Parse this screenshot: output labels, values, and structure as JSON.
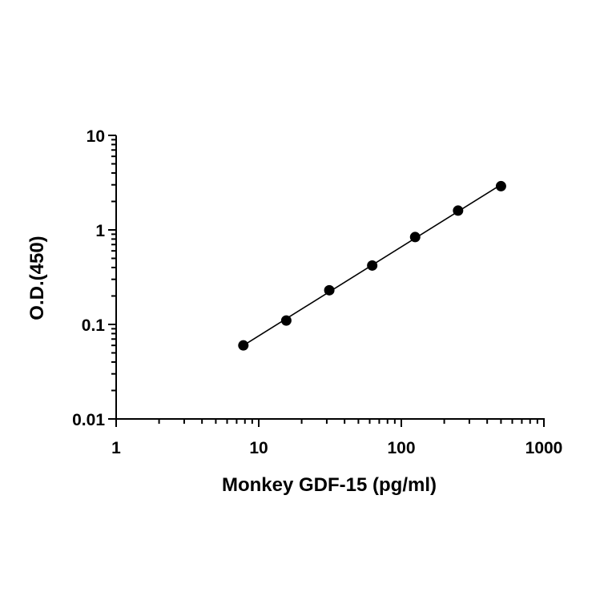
{
  "chart_data": {
    "type": "scatter",
    "title": "",
    "xlabel": "Monkey GDF-15 (pg/ml)",
    "ylabel": "O.D.(450)",
    "x_scale": "log",
    "y_scale": "log",
    "xlim": [
      1,
      1000
    ],
    "ylim": [
      0.01,
      10
    ],
    "x_ticks": [
      "1",
      "10",
      "100",
      "1000"
    ],
    "y_ticks": [
      "0.01",
      "0.1",
      "1",
      "10"
    ],
    "grid": false,
    "legend": "none",
    "fit_line": true,
    "marker_color": "#000000",
    "line_color": "#000000",
    "series": [
      {
        "x": [
          7.8,
          15.6,
          31.25,
          62.5,
          125,
          250,
          500
        ],
        "y": [
          0.06,
          0.11,
          0.23,
          0.42,
          0.84,
          1.6,
          2.9
        ]
      }
    ]
  }
}
